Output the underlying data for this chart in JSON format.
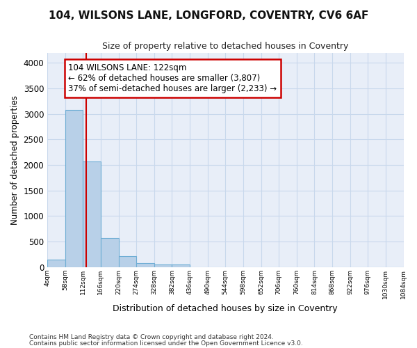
{
  "title": "104, WILSONS LANE, LONGFORD, COVENTRY, CV6 6AF",
  "subtitle": "Size of property relative to detached houses in Coventry",
  "xlabel": "Distribution of detached houses by size in Coventry",
  "ylabel": "Number of detached properties",
  "bar_edges": [
    4,
    58,
    112,
    166,
    220,
    274,
    328,
    382,
    436,
    490,
    544,
    598,
    652,
    706,
    760,
    814,
    868,
    922,
    976,
    1030,
    1084
  ],
  "bar_heights": [
    150,
    3070,
    2070,
    565,
    210,
    80,
    55,
    50,
    0,
    0,
    0,
    0,
    0,
    0,
    0,
    0,
    0,
    0,
    0,
    0
  ],
  "bar_color": "#b8d0e8",
  "bar_edge_color": "#6eadd4",
  "grid_color": "#c8d8ec",
  "vline_x": 122,
  "vline_color": "#cc0000",
  "annotation_text": "104 WILSONS LANE: 122sqm\n← 62% of detached houses are smaller (3,807)\n37% of semi-detached houses are larger (2,233) →",
  "ylim": [
    0,
    4200
  ],
  "xlim": [
    4,
    1084
  ],
  "tick_labels": [
    "4sqm",
    "58sqm",
    "112sqm",
    "166sqm",
    "220sqm",
    "274sqm",
    "328sqm",
    "382sqm",
    "436sqm",
    "490sqm",
    "544sqm",
    "598sqm",
    "652sqm",
    "706sqm",
    "760sqm",
    "814sqm",
    "868sqm",
    "922sqm",
    "976sqm",
    "1030sqm",
    "1084sqm"
  ],
  "footer1": "Contains HM Land Registry data © Crown copyright and database right 2024.",
  "footer2": "Contains public sector information licensed under the Open Government Licence v3.0.",
  "bg_color": "#ffffff",
  "plot_bg_color": "#e8eef8"
}
